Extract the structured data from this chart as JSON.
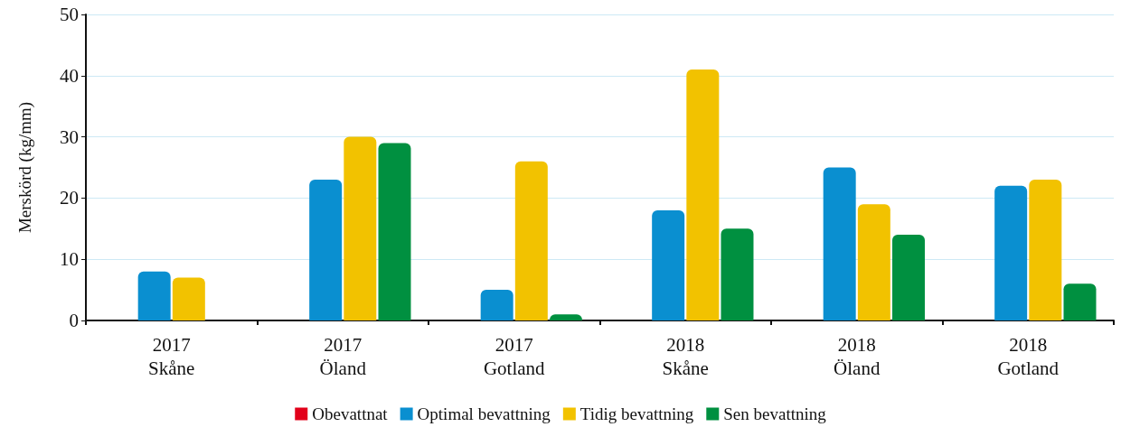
{
  "chart_data": {
    "type": "bar",
    "ylabel": "Merskörd (kg/mm)",
    "categories": [
      "2017\nSkåne",
      "2017\nÖland",
      "2017\nGotland",
      "2018\nSkåne",
      "2018\nÖland",
      "2018\nGotland"
    ],
    "series": [
      {
        "name": "Obevattnat",
        "color": "#e2001a",
        "values": [
          0,
          0,
          0,
          0,
          0,
          0
        ]
      },
      {
        "name": "Optimal bevattning",
        "color": "#0a8fd0",
        "values": [
          8,
          23,
          5,
          18,
          25,
          22
        ]
      },
      {
        "name": "Tidig bevattning",
        "color": "#f2c200",
        "values": [
          7,
          30,
          26,
          41,
          19,
          23
        ]
      },
      {
        "name": "Sen bevattning",
        "color": "#009040",
        "values": [
          null,
          29,
          1,
          15,
          14,
          6
        ]
      }
    ],
    "ylim": [
      0,
      50
    ],
    "yticks": [
      0,
      10,
      20,
      30,
      40,
      50
    ],
    "grid": "y",
    "legend": "bottom"
  }
}
